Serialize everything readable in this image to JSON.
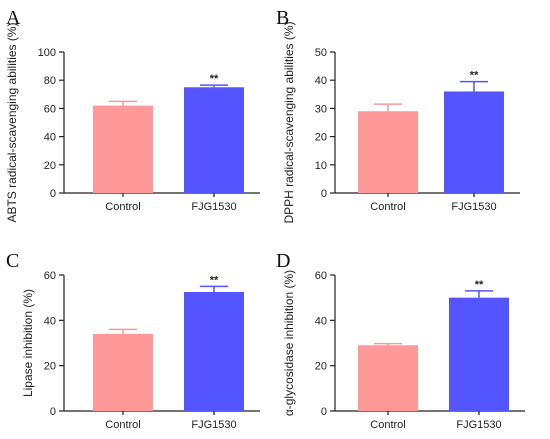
{
  "colors": {
    "control": "#FF9999",
    "treatment": "#5555FF",
    "axis": "#222222"
  },
  "chart_data": [
    {
      "panel": "A",
      "type": "bar",
      "categories": [
        "Control",
        "FJG1530"
      ],
      "values": [
        62,
        75
      ],
      "errors": [
        3,
        1.5
      ],
      "annotations": [
        "",
        "**"
      ],
      "ylabel": "ABTS radical-scavenging abilities (%)",
      "ylim": [
        0,
        100
      ],
      "yticks": [
        "0",
        "20",
        "40",
        "60",
        "80",
        "100"
      ]
    },
    {
      "panel": "B",
      "type": "bar",
      "categories": [
        "Control",
        "FJG1530"
      ],
      "values": [
        29,
        36
      ],
      "errors": [
        2.5,
        3.5
      ],
      "annotations": [
        "",
        "**"
      ],
      "ylabel": "DPPH radical-scavenging abilities (%)",
      "ylim": [
        0,
        50
      ],
      "yticks": [
        "0",
        "10",
        "20",
        "30",
        "40",
        "50"
      ]
    },
    {
      "panel": "C",
      "type": "bar",
      "categories": [
        "Control",
        "FJG1530"
      ],
      "values": [
        34,
        52.5
      ],
      "errors": [
        2,
        2.5
      ],
      "annotations": [
        "",
        "**"
      ],
      "ylabel": "Lipase inhibition (%)",
      "ylim": [
        0,
        60
      ],
      "yticks": [
        "0",
        "20",
        "40",
        "60"
      ]
    },
    {
      "panel": "D",
      "type": "bar",
      "categories": [
        "Control",
        "FJG1530"
      ],
      "values": [
        29,
        50
      ],
      "errors": [
        0.7,
        3
      ],
      "annotations": [
        "",
        "**"
      ],
      "ylabel": "α-glycosidase inhibition (%)",
      "ylim": [
        0,
        60
      ],
      "yticks": [
        "0",
        "20",
        "40",
        "60"
      ]
    }
  ]
}
